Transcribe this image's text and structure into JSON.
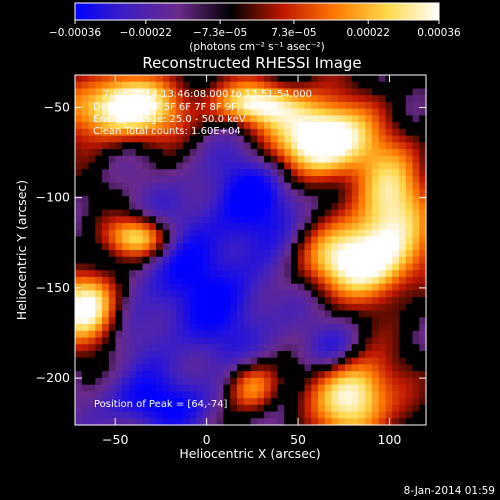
{
  "colorbar": {
    "tick_labels": [
      "−0.00036",
      "−0.00022",
      "−7.3e−05",
      "7.3e−05",
      "0.00022",
      "0.00036"
    ],
    "tick_values": [
      -0.00036,
      -0.00022,
      -7.3e-05,
      7.3e-05,
      0.00022,
      0.00036
    ],
    "range": [
      -0.00036,
      0.00036
    ],
    "unit_label": "(photons cm⁻² s⁻¹ asec⁻²)"
  },
  "chart_data": {
    "type": "heatmap",
    "title": "Reconstructed RHESSI Image",
    "xlabel": "Heliocentric X (arcsec)",
    "ylabel": "Heliocentric Y (arcsec)",
    "xlim": [
      -72,
      120
    ],
    "ylim": [
      -226,
      -32
    ],
    "x_ticks": [
      -50,
      0,
      50,
      100
    ],
    "y_ticks": [
      -50,
      -100,
      -150,
      -200
    ],
    "colormap": [
      "#0000ff",
      "#4020c0",
      "#6a2a8a",
      "#000000",
      "#c01800",
      "#ff7800",
      "#ffd84a",
      "#ffffff"
    ],
    "annotations": [
      "7-Jan-2014 13:46:08.000 to 13:51:54.000",
      "Detectors: 3F 5F 6F 7F 8F 9F, Att 0",
      "Energy Range: 25.0 - 50.0 keV",
      "Clean     Total counts: 1.60E+04"
    ],
    "peak_label": "Position of Peak = [64,-74]",
    "peak_position": [
      64,
      -74
    ],
    "bright_sources": [
      {
        "x": 62,
        "y": -68,
        "sx": 18,
        "sy": 14,
        "amp": 1.0
      },
      {
        "x": 28,
        "y": -48,
        "sx": 16,
        "sy": 8,
        "amp": 0.65
      },
      {
        "x": -45,
        "y": -50,
        "sx": 22,
        "sy": 12,
        "amp": 0.8
      },
      {
        "x": 80,
        "y": -135,
        "sx": 22,
        "sy": 14,
        "amp": 0.75
      },
      {
        "x": 100,
        "y": -105,
        "sx": 14,
        "sy": 22,
        "amp": 0.6
      },
      {
        "x": -65,
        "y": -160,
        "sx": 12,
        "sy": 14,
        "amp": 0.85
      },
      {
        "x": -38,
        "y": -122,
        "sx": 12,
        "sy": 8,
        "amp": 0.7
      },
      {
        "x": 80,
        "y": -210,
        "sx": 14,
        "sy": 16,
        "amp": 0.75
      },
      {
        "x": 25,
        "y": -205,
        "sx": 10,
        "sy": 10,
        "amp": 0.55
      }
    ],
    "dark_regions": [
      {
        "x": 0,
        "y": -150,
        "sx": 40,
        "sy": 40,
        "amp": 0.75
      },
      {
        "x": 30,
        "y": -95,
        "sx": 22,
        "sy": 20,
        "amp": 0.55
      },
      {
        "x": -30,
        "y": -215,
        "sx": 28,
        "sy": 12,
        "amp": 0.6
      },
      {
        "x": 70,
        "y": -185,
        "sx": 12,
        "sy": 10,
        "amp": 0.5
      }
    ]
  },
  "footer": {
    "timestamp": "8-Jan-2014 01:59"
  }
}
